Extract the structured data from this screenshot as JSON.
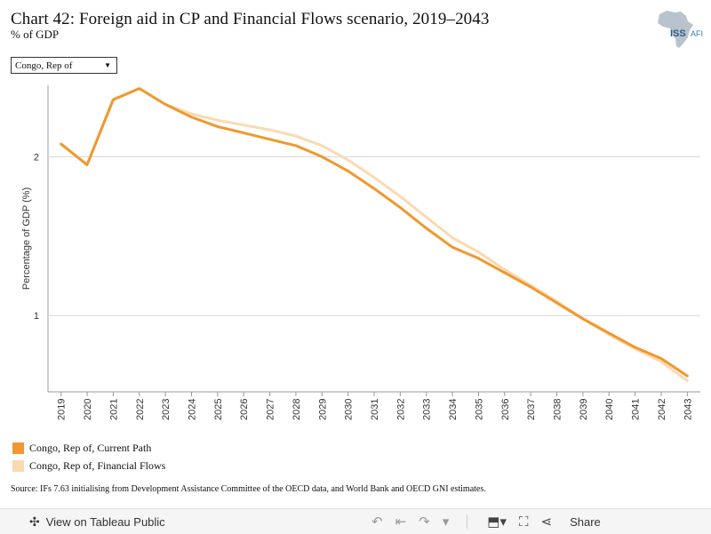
{
  "title": "Chart 42: Foreign aid in CP and Financial Flows scenario, 2019–2043",
  "subtitle": "% of GDP",
  "logo": {
    "text_left": "ISS",
    "text_right": "AFI"
  },
  "filter": {
    "selected": "Congo, Rep of"
  },
  "source": "Source: IFs 7.63 initialising from Development Assistance Committee of the OECD data, and World Bank and OECD GNI estimates.",
  "footer": {
    "view_label": "View on Tableau Public",
    "share_label": "Share"
  },
  "colors": {
    "current_path": "#F0982E",
    "financial_flows": "#FBD9B1",
    "gridline": "#d9d9d9"
  },
  "chart_data": {
    "type": "line",
    "title": "Chart 42: Foreign aid in CP and Financial Flows scenario, 2019–2043",
    "ylabel": "Percentage of GDP (%)",
    "xlabel": "",
    "ylim": [
      0.52,
      2.45
    ],
    "yticks": [
      1,
      2
    ],
    "legend_position": "bottom-left",
    "x": [
      "2019",
      "2020",
      "2021",
      "2022",
      "2023",
      "2024",
      "2025",
      "2026",
      "2027",
      "2028",
      "2029",
      "2030",
      "2031",
      "2032",
      "2033",
      "2034",
      "2035",
      "2036",
      "2037",
      "2038",
      "2039",
      "2040",
      "2041",
      "2042",
      "2043"
    ],
    "series": [
      {
        "name": "Congo, Rep of, Current Path",
        "color": "#F0982E",
        "values": [
          2.08,
          1.95,
          2.36,
          2.43,
          2.33,
          2.25,
          2.19,
          2.15,
          2.11,
          2.07,
          2.0,
          1.91,
          1.8,
          1.68,
          1.55,
          1.43,
          1.36,
          1.27,
          1.18,
          1.08,
          0.98,
          0.89,
          0.8,
          0.73,
          0.62
        ]
      },
      {
        "name": "Congo, Rep of, Financial Flows",
        "color": "#FBD9B1",
        "values": [
          2.08,
          1.95,
          2.36,
          2.43,
          2.33,
          2.27,
          2.23,
          2.2,
          2.17,
          2.13,
          2.07,
          1.98,
          1.87,
          1.75,
          1.62,
          1.49,
          1.4,
          1.29,
          1.19,
          1.09,
          0.98,
          0.88,
          0.79,
          0.71,
          0.59
        ]
      }
    ]
  }
}
